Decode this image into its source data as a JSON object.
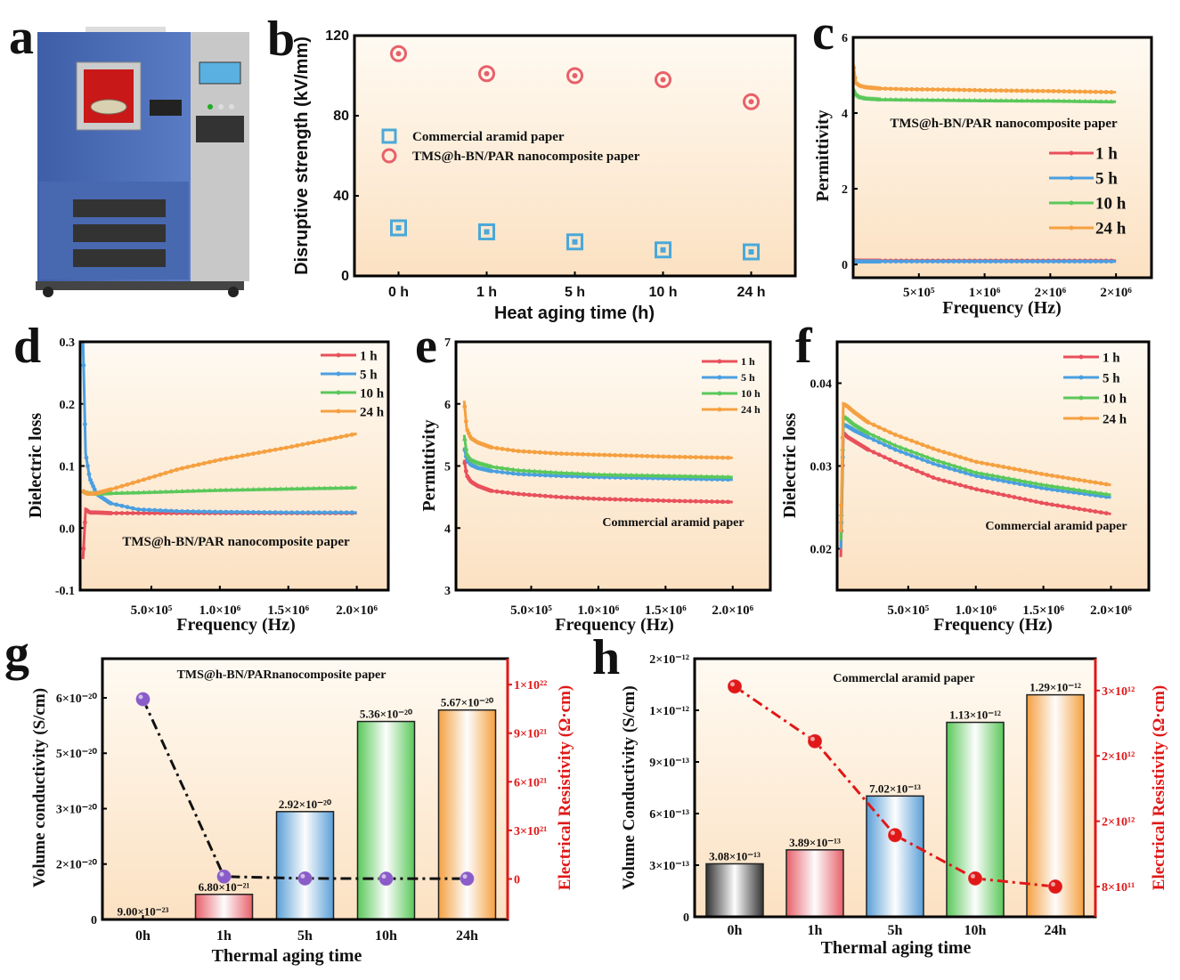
{
  "panel_labels": [
    "a",
    "b",
    "c",
    "d",
    "e",
    "f",
    "g",
    "h"
  ],
  "series_colors": {
    "1 h": "#e8505b",
    "5 h": "#4a9fe0",
    "10 h": "#5ac85a",
    "24 h": "#f5a040"
  },
  "chart_data": [
    {
      "id": "b",
      "type": "scatter",
      "xlabel": "Heat aging time (h)",
      "ylabel": "Disruptive strength (kV/mm)",
      "categories": [
        "0 h",
        "1 h",
        "5 h",
        "10 h",
        "24 h"
      ],
      "ylim": [
        0,
        120
      ],
      "yticks": [
        0,
        40,
        80,
        120
      ],
      "ytick_labels": [
        "0",
        "40",
        "80",
        "120"
      ],
      "legend": "center-left",
      "series": [
        {
          "name": "Commercial aramid paper",
          "color": "#4aa8d8",
          "marker": "square",
          "values": [
            24,
            22,
            17,
            13,
            12
          ]
        },
        {
          "name": "TMS@h-BN/PAR nanocomposite paper",
          "color": "#e8606a",
          "marker": "circle",
          "values": [
            111,
            101,
            100,
            98,
            87
          ]
        }
      ]
    },
    {
      "id": "c",
      "type": "line",
      "xlabel": "Frequency (Hz)",
      "ylabel": "Permittivity",
      "annotation": "TMS@h-BN/PAR nanocomposite paper",
      "xlim": [
        0,
        2270000
      ],
      "ylim": [
        -0.35,
        6
      ],
      "xticks": [
        500000,
        1000000,
        1500000,
        2000000
      ],
      "xtick_labels": [
        "5×10⁵",
        "1×10⁶",
        "2×10⁶",
        "2×10⁶"
      ],
      "yticks": [
        0,
        2,
        4,
        6
      ],
      "ytick_labels": [
        "0",
        "2",
        "4",
        "6"
      ],
      "legend": "right",
      "x": [
        1000,
        20000,
        50000,
        100000,
        200000,
        400000,
        700000,
        1000000,
        1500000,
        2000000
      ],
      "series": [
        {
          "name": "1 h",
          "values": [
            0.12,
            0.1,
            0.1,
            0.1,
            0.1,
            0.1,
            0.1,
            0.1,
            0.1,
            0.1
          ]
        },
        {
          "name": "5 h",
          "values": [
            0.1,
            0.08,
            0.08,
            0.08,
            0.08,
            0.08,
            0.08,
            0.08,
            0.08,
            0.08
          ]
        },
        {
          "name": "10 h",
          "values": [
            4.65,
            4.5,
            4.42,
            4.38,
            4.36,
            4.35,
            4.34,
            4.33,
            4.32,
            4.3
          ]
        },
        {
          "name": "24 h",
          "values": [
            5.3,
            4.8,
            4.72,
            4.68,
            4.65,
            4.63,
            4.62,
            4.6,
            4.58,
            4.55
          ]
        }
      ]
    },
    {
      "id": "d",
      "type": "line",
      "xlabel": "Frequency (Hz)",
      "ylabel": "Dielectric loss",
      "annotation": "TMS@h-BN/PAR nanocomposite paper",
      "xlim": [
        -20000,
        2230000
      ],
      "ylim": [
        -0.1,
        0.3
      ],
      "xticks": [
        500000,
        1000000,
        1500000,
        2000000
      ],
      "xtick_labels": [
        "5.0×10⁵",
        "1.0×10⁶",
        "1.5×10⁶",
        "2.0×10⁶"
      ],
      "yticks": [
        -0.1,
        0,
        0.1,
        0.2,
        0.3
      ],
      "ytick_labels": [
        "-0.1",
        "0.0",
        "0.1",
        "0.2",
        "0.3"
      ],
      "legend": "top-right",
      "x": [
        1000,
        20000,
        50000,
        100000,
        200000,
        400000,
        700000,
        1000000,
        1500000,
        2000000
      ],
      "series": [
        {
          "name": "1 h",
          "values": [
            -0.05,
            0.03,
            0.025,
            0.025,
            0.024,
            0.024,
            0.024,
            0.024,
            0.024,
            0.024
          ]
        },
        {
          "name": "5 h",
          "values": [
            0.3,
            0.12,
            0.08,
            0.055,
            0.04,
            0.03,
            0.027,
            0.026,
            0.025,
            0.025
          ]
        },
        {
          "name": "10 h",
          "values": [
            0.06,
            0.057,
            0.056,
            0.055,
            0.056,
            0.057,
            0.059,
            0.061,
            0.063,
            0.065
          ]
        },
        {
          "name": "24 h",
          "values": [
            0.06,
            0.056,
            0.055,
            0.056,
            0.062,
            0.075,
            0.095,
            0.11,
            0.13,
            0.152
          ]
        }
      ]
    },
    {
      "id": "e",
      "type": "line",
      "xlabel": "Frequency (Hz)",
      "ylabel": "Permittivity",
      "annotation": "Commercial aramid paper",
      "xlim": [
        -60000,
        2280000
      ],
      "ylim": [
        3,
        7
      ],
      "xticks": [
        500000,
        1000000,
        1500000,
        2000000
      ],
      "xtick_labels": [
        "5.0×10⁵",
        "1.0×10⁶",
        "1.5×10⁶",
        "2.0×10⁶"
      ],
      "yticks": [
        3,
        4,
        5,
        6,
        7
      ],
      "ytick_labels": [
        "3",
        "4",
        "5",
        "6",
        "7"
      ],
      "legend": "top-right",
      "x": [
        1000,
        20000,
        50000,
        100000,
        200000,
        400000,
        700000,
        1000000,
        1500000,
        2000000
      ],
      "series": [
        {
          "name": "1 h",
          "values": [
            5.1,
            4.85,
            4.75,
            4.68,
            4.6,
            4.55,
            4.5,
            4.47,
            4.44,
            4.42
          ]
        },
        {
          "name": "5 h",
          "values": [
            5.3,
            5.1,
            5.02,
            4.97,
            4.92,
            4.87,
            4.84,
            4.82,
            4.8,
            4.78
          ]
        },
        {
          "name": "10 h",
          "values": [
            5.5,
            5.2,
            5.1,
            5.05,
            4.99,
            4.93,
            4.89,
            4.86,
            4.84,
            4.82
          ]
        },
        {
          "name": "24 h",
          "values": [
            6.05,
            5.6,
            5.45,
            5.38,
            5.3,
            5.24,
            5.2,
            5.18,
            5.15,
            5.13
          ]
        }
      ]
    },
    {
      "id": "f",
      "type": "line",
      "xlabel": "Frequency (Hz)",
      "ylabel": "Dielectric loss",
      "annotation": "Commercial aramid paper",
      "xlim": [
        -26000,
        2280000
      ],
      "ylim": [
        0.015,
        0.045
      ],
      "xticks": [
        500000,
        1000000,
        1500000,
        2000000
      ],
      "xtick_labels": [
        "5.0×10⁵",
        "1.0×10⁶",
        "1.5×10⁶",
        "2.0×10⁶"
      ],
      "yticks": [
        0.02,
        0.03,
        0.04
      ],
      "ytick_labels": [
        "0.02",
        "0.03",
        "0.04"
      ],
      "legend": "top-right",
      "x": [
        1000,
        20000,
        50000,
        100000,
        200000,
        400000,
        700000,
        1000000,
        1500000,
        2000000
      ],
      "series": [
        {
          "name": "1 h",
          "values": [
            0.019,
            0.034,
            0.0335,
            0.033,
            0.032,
            0.0305,
            0.0285,
            0.0272,
            0.0255,
            0.0242
          ]
        },
        {
          "name": "5 h",
          "values": [
            0.02,
            0.035,
            0.0348,
            0.0343,
            0.0335,
            0.032,
            0.0302,
            0.0288,
            0.0273,
            0.0262
          ]
        },
        {
          "name": "10 h",
          "values": [
            0.021,
            0.036,
            0.0357,
            0.035,
            0.034,
            0.0325,
            0.0307,
            0.0292,
            0.0277,
            0.0265
          ]
        },
        {
          "name": "24 h",
          "values": [
            0.022,
            0.0375,
            0.0372,
            0.0365,
            0.0353,
            0.0338,
            0.032,
            0.0305,
            0.029,
            0.0277
          ]
        }
      ]
    },
    {
      "id": "g",
      "type": "bar",
      "xlabel": "Thermal aging time",
      "ylabel": "Volume conductivity (S/cm)",
      "y2label": "Electrical Resistivity (Ω·cm)",
      "annotation": "TMS@h-BN/PARnanocomposite paper",
      "categories": [
        "0h",
        "1h",
        "5h",
        "10h",
        "24h"
      ],
      "ylim": [
        0,
        7.06e-20
      ],
      "yticks": [
        0,
        1.5e-20,
        3e-20,
        4.5e-20,
        6e-20
      ],
      "ytick_labels": [
        "0",
        "2×10⁻²⁰",
        "3×10⁻²⁰",
        "5×10⁻²⁰",
        "6×10⁻²⁰"
      ],
      "y2lim": [
        -2.5e+21,
        1.36e+22
      ],
      "y2ticks": [
        0,
        3e+21,
        6e+21,
        9e+21,
        1.2e+22
      ],
      "y2tick_labels": [
        "0",
        "3×10²¹",
        "6×10²¹",
        "9×10²¹",
        "1×10²²"
      ],
      "bars": {
        "values": [
          9e-23,
          6.8e-21,
          2.92e-20,
          5.36e-20,
          5.67e-20
        ],
        "labels": [
          "9.00×10⁻²³",
          "6.80×10⁻²¹",
          "2.92×10⁻²⁰",
          "5.36×10⁻²⁰",
          "5.67×10⁻²⁰"
        ],
        "colors": [
          "#888888",
          "#e8606a",
          "#5a9fd8",
          "#5ac85a",
          "#f5a040"
        ]
      },
      "line": {
        "values": [
          1.11e+22,
          1.5e+20,
          3.4e+19,
          1.9e+19,
          1.8e+19
        ],
        "color": "#8a5cc8",
        "style": "dash-dot"
      }
    },
    {
      "id": "h",
      "type": "bar",
      "xlabel": "Thermal aging time",
      "ylabel": "Volume Conductivity (S/cm)",
      "y2label": "Electrical Resistivity (Ω·cm)",
      "annotation": "Commerclal aramid paper",
      "categories": [
        "0h",
        "1h",
        "5h",
        "10h",
        "24h"
      ],
      "ylim": [
        0,
        1.5e-12
      ],
      "yticks": [
        0,
        3e-13,
        6e-13,
        9e-13,
        1.2e-12,
        1.5e-12
      ],
      "ytick_labels": [
        "0",
        "3×10⁻¹³",
        "6×10⁻¹³",
        "9×10⁻¹³",
        "1×10⁻¹²",
        "2×10⁻¹²"
      ],
      "y2lim": [
        430000000000.0,
        3590000000000.0
      ],
      "y2ticks": [
        800000000000.0,
        1600000000000.0,
        2400000000000.0,
        3200000000000.0
      ],
      "y2tick_labels": [
        "8×10¹¹",
        "2×10¹²",
        "2×10¹²",
        "3×10¹²"
      ],
      "bars": {
        "values": [
          3.08e-13,
          3.89e-13,
          7.02e-13,
          1.13e-12,
          1.29e-12
        ],
        "labels": [
          "3.08×10⁻¹³",
          "3.89×10⁻¹³",
          "7.02×10⁻¹³",
          "1.13×10⁻¹²",
          "1.29×10⁻¹²"
        ],
        "colors": [
          "#333333",
          "#e8606a",
          "#5a9fd8",
          "#5ac85a",
          "#f5a040"
        ]
      },
      "line": {
        "values": [
          3250000000000.0,
          2580000000000.0,
          1430000000000.0,
          900000000000.0,
          800000000000.0
        ],
        "color": "#e01818",
        "style": "dash-dot"
      }
    }
  ]
}
